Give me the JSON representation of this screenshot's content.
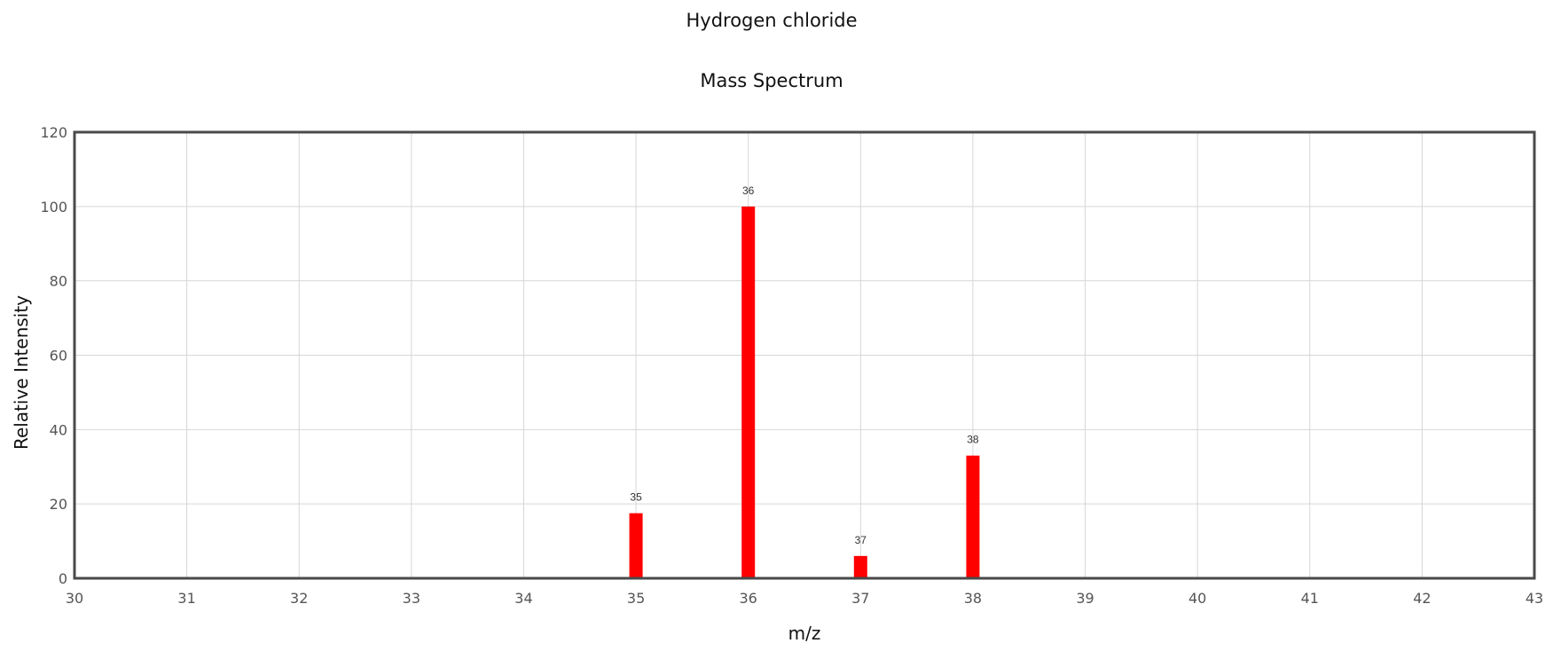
{
  "chart_data": {
    "type": "bar",
    "title": "Hydrogen chloride",
    "subtitle": "Mass Spectrum",
    "xlabel": "m/z",
    "ylabel": "Relative Intensity",
    "xlim": [
      30,
      43
    ],
    "ylim": [
      0,
      120
    ],
    "xticks": [
      30,
      31,
      32,
      33,
      34,
      35,
      36,
      37,
      38,
      39,
      40,
      41,
      42,
      43
    ],
    "yticks": [
      0,
      20,
      40,
      60,
      80,
      100,
      120
    ],
    "grid": true,
    "bar_color": "#ff0000",
    "points": [
      {
        "x": 35,
        "y": 17.5,
        "label": "35"
      },
      {
        "x": 36,
        "y": 100,
        "label": "36"
      },
      {
        "x": 37,
        "y": 6,
        "label": "37"
      },
      {
        "x": 38,
        "y": 33,
        "label": "38"
      }
    ]
  }
}
